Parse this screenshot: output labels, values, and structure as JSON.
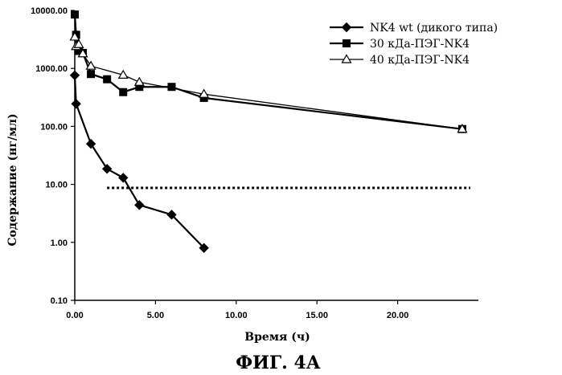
{
  "figure_caption": "ФИГ. 4А",
  "chart_data": {
    "type": "line",
    "title": "",
    "xlabel": "Время (ч)",
    "ylabel": "Содержание (нг/мл)",
    "xlim": [
      0,
      25
    ],
    "ylim": [
      0.1,
      10000
    ],
    "yscale": "log",
    "grid": false,
    "legend_position": "top-right",
    "x_ticks": [
      0,
      5,
      10,
      15,
      20
    ],
    "x_tick_labels": [
      "0.00",
      "5.00",
      "10.00",
      "15.00",
      "20.00"
    ],
    "y_ticks": [
      0.1,
      1,
      10,
      100,
      1000,
      10000
    ],
    "y_tick_labels": [
      "0.10",
      "1.00",
      "10.00",
      "100.00",
      "1000.00",
      "10000.00"
    ],
    "series": [
      {
        "name": "NK4 wt (дикого типа)",
        "marker": "diamond",
        "color": "#000000",
        "x": [
          0,
          0.083,
          1,
          2,
          3,
          4,
          6,
          8
        ],
        "y": [
          760,
          245,
          50,
          18.5,
          13,
          4.4,
          3.0,
          0.8
        ]
      },
      {
        "name": "30 кДа-ПЭГ-NK4",
        "marker": "square",
        "color": "#000000",
        "x": [
          0,
          0.083,
          0.25,
          0.5,
          1,
          2,
          3,
          4,
          6,
          8,
          24
        ],
        "y": [
          8500,
          3800,
          2000,
          1850,
          800,
          650,
          390,
          480,
          480,
          310,
          90
        ]
      },
      {
        "name": "40 кДа-ПЭГ-NK4",
        "marker": "triangle",
        "color": "#000000",
        "x": [
          0,
          0.083,
          0.25,
          0.5,
          1,
          3,
          4,
          8,
          24
        ],
        "y": [
          3500,
          2400,
          2600,
          1800,
          1100,
          770,
          580,
          360,
          90
        ]
      }
    ],
    "reference_line": {
      "style": "dotted",
      "y": 8.7,
      "x": [
        2,
        24.5
      ]
    }
  }
}
